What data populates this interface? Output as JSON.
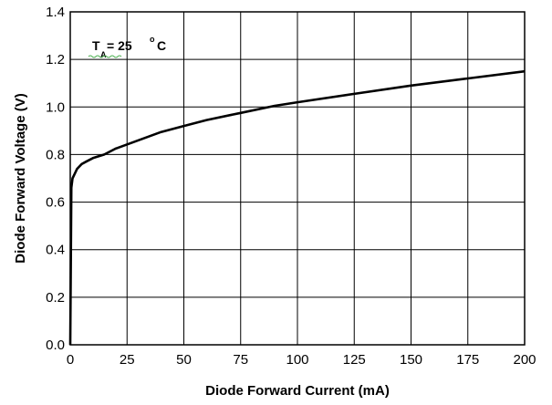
{
  "chart_data": {
    "type": "line",
    "xlabel": "Diode Forward Current (mA)",
    "ylabel": "Diode Forward Voltage (V)",
    "xlim": [
      0,
      200
    ],
    "ylim": [
      0,
      1.4
    ],
    "x_ticks": [
      "0",
      "25",
      "50",
      "75",
      "100",
      "125",
      "150",
      "175",
      "200"
    ],
    "y_ticks": [
      "0.0",
      "0.2",
      "0.4",
      "0.6",
      "0.8",
      "1.0",
      "1.2",
      "1.4"
    ],
    "grid": true,
    "annotation": {
      "main": "T",
      "subscript": "A",
      "value": " = 25 ",
      "superscript": "o",
      "unit": "C"
    },
    "series": [
      {
        "x": [
          0,
          0.5,
          1,
          2,
          3,
          5,
          7,
          10,
          15,
          20,
          30,
          40,
          50,
          60,
          75,
          90,
          100,
          125,
          150,
          175,
          200
        ],
        "y": [
          0.0,
          0.66,
          0.7,
          0.72,
          0.74,
          0.76,
          0.77,
          0.785,
          0.8,
          0.825,
          0.86,
          0.895,
          0.92,
          0.945,
          0.975,
          1.005,
          1.02,
          1.055,
          1.09,
          1.12,
          1.15
        ],
        "color": "#000000"
      }
    ]
  }
}
